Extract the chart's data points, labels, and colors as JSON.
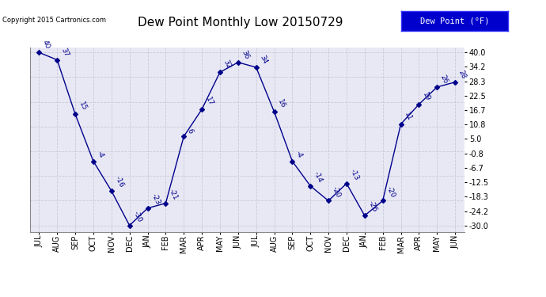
{
  "title": "Dew Point Monthly Low 20150729",
  "copyright": "Copyright 2015 Cartronics.com",
  "legend_label": "Dew Point (°F)",
  "x_labels": [
    "JUL",
    "AUG",
    "SEP",
    "OCT",
    "NOV",
    "DEC",
    "JAN",
    "FEB",
    "MAR",
    "APR",
    "MAY",
    "JUN",
    "JUL",
    "AUG",
    "SEP",
    "OCT",
    "NOV",
    "DEC",
    "JAN",
    "FEB",
    "MAR",
    "APR",
    "MAY",
    "JUN"
  ],
  "y_values": [
    40,
    37,
    15,
    -4,
    -16,
    -30,
    -23,
    -21,
    6,
    17,
    32,
    36,
    34,
    16,
    -4,
    -14,
    -20,
    -13,
    -26,
    -20,
    11,
    19,
    26,
    28
  ],
  "y_ticks": [
    40.0,
    34.2,
    28.3,
    22.5,
    16.7,
    10.8,
    5.0,
    -0.8,
    -6.7,
    -12.5,
    -18.3,
    -24.2,
    -30.0
  ],
  "ylim": [
    -32.5,
    42.0
  ],
  "line_color": "#00008b",
  "marker_color": "#00008b",
  "label_color": "#00008b",
  "bg_color": "#ffffff",
  "plot_bg_color": "#e8e8f5",
  "grid_color": "#c8c8d8",
  "title_fontsize": 11,
  "tick_fontsize": 7,
  "label_fontsize": 6.5,
  "copyright_fontsize": 6,
  "legend_fontsize": 7.5
}
